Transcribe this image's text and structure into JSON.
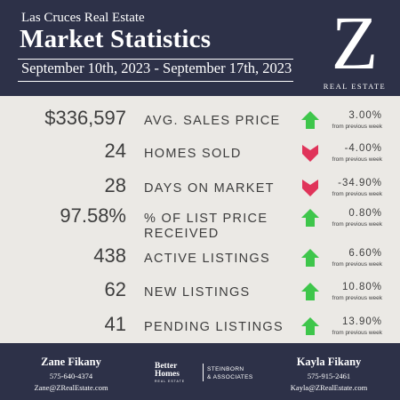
{
  "header": {
    "subtitle": "Las Cruces Real Estate",
    "title": "Market Statistics",
    "date_range": "September 10th, 2023 - September 17th, 2023",
    "logo_letter": "Z",
    "logo_subtitle": "REAL ESTATE"
  },
  "colors": {
    "navy": "#2d3148",
    "panel": "#ebe9e5",
    "up": "#3ec64b",
    "down": "#e0345a"
  },
  "stats": [
    {
      "value": "$336,597",
      "label": "AVG. SALES PRICE",
      "direction": "up",
      "change": "3.00%",
      "note": "from previous week"
    },
    {
      "value": "24",
      "label": "HOMES SOLD",
      "direction": "down",
      "change": "-4.00%",
      "note": "from previous week"
    },
    {
      "value": "28",
      "label": "DAYS ON MARKET",
      "direction": "down",
      "change": "-34.90%",
      "note": "from previous week"
    },
    {
      "value": "97.58%",
      "label": "% OF LIST PRICE RECEIVED",
      "direction": "up",
      "change": "0.80%",
      "note": "from previous week"
    },
    {
      "value": "438",
      "label": "ACTIVE LISTINGS",
      "direction": "up",
      "change": "6.60%",
      "note": "from previous week"
    },
    {
      "value": "62",
      "label": "NEW LISTINGS",
      "direction": "up",
      "change": "10.80%",
      "note": "from previous week"
    },
    {
      "value": "41",
      "label": "PENDING LISTINGS",
      "direction": "up",
      "change": "13.90%",
      "note": "from previous week"
    }
  ],
  "footer": {
    "agent_left": {
      "name": "Zane Fikany",
      "phone": "575-640-4374",
      "email": "Zane@ZRealEstate.com"
    },
    "brand": {
      "name": "Better Homes",
      "sub": "REAL ESTATE",
      "partner_line1": "STEINBORN",
      "partner_line2": "& ASSOCIATES"
    },
    "agent_right": {
      "name": "Kayla Fikany",
      "phone": "575-915-2461",
      "email": "Kayla@ZRealEstate.com"
    }
  }
}
